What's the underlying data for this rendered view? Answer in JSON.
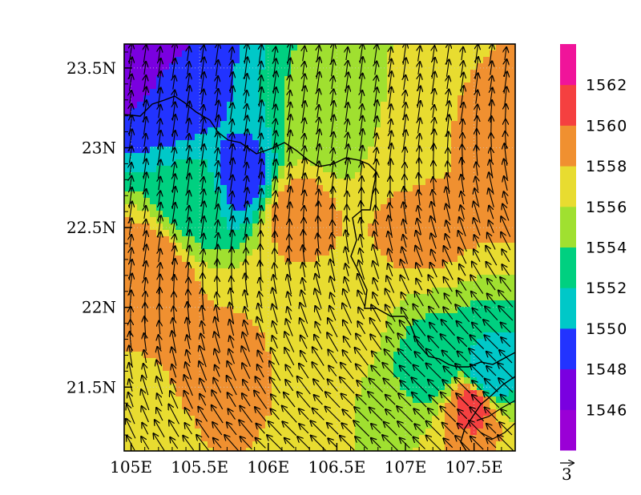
{
  "map": {
    "x_ticks": [
      "105E",
      "105.5E",
      "106E",
      "106.5E",
      "107E",
      "107.5E"
    ],
    "x_tick_values": [
      105,
      105.5,
      106,
      106.5,
      107,
      107.5
    ],
    "y_ticks": [
      "21.5N",
      "22N",
      "22.5N",
      "23N",
      "23.5N"
    ],
    "y_tick_values": [
      21.5,
      22,
      22.5,
      23,
      23.5
    ],
    "lon_range": [
      104.95,
      107.8
    ],
    "lat_range": [
      21.1,
      23.65
    ],
    "wind_reference": {
      "label": "3",
      "magnitude": 3
    }
  },
  "colorbar": {
    "labels": [
      "1546",
      "1548",
      "1550",
      "1552",
      "1554",
      "1556",
      "1558",
      "1560",
      "1562"
    ],
    "levels": [
      1546,
      1548,
      1550,
      1552,
      1554,
      1556,
      1558,
      1560,
      1562
    ],
    "colors": [
      "#9a00d6",
      "#7a00e0",
      "#2233ff",
      "#00c8c8",
      "#00d080",
      "#a0e030",
      "#e8dc30",
      "#f09030",
      "#f54040",
      "#f0149a"
    ]
  },
  "chart_data": {
    "type": "heatmap",
    "title": "",
    "xlabel": "",
    "ylabel": "",
    "xlim": [
      104.95,
      107.8
    ],
    "ylim": [
      21.1,
      23.65
    ],
    "colorbar_levels": [
      1546,
      1548,
      1550,
      1552,
      1554,
      1556,
      1558,
      1560,
      1562
    ],
    "field_samples": [
      {
        "lon": 105.05,
        "lat": 23.55,
        "value": 1546
      },
      {
        "lon": 105.3,
        "lat": 23.3,
        "value": 1549
      },
      {
        "lon": 105.8,
        "lat": 22.8,
        "value": 1549
      },
      {
        "lon": 105.5,
        "lat": 22.7,
        "value": 1553
      },
      {
        "lon": 106.2,
        "lat": 22.6,
        "value": 1559
      },
      {
        "lon": 106.5,
        "lat": 23.1,
        "value": 1555
      },
      {
        "lon": 107.0,
        "lat": 22.9,
        "value": 1557
      },
      {
        "lon": 107.1,
        "lat": 22.6,
        "value": 1559
      },
      {
        "lon": 107.7,
        "lat": 22.9,
        "value": 1559
      },
      {
        "lon": 105.1,
        "lat": 22.2,
        "value": 1560
      },
      {
        "lon": 105.6,
        "lat": 21.6,
        "value": 1559
      },
      {
        "lon": 106.0,
        "lat": 21.9,
        "value": 1558
      },
      {
        "lon": 106.5,
        "lat": 21.9,
        "value": 1557
      },
      {
        "lon": 107.2,
        "lat": 21.6,
        "value": 1553
      },
      {
        "lon": 107.6,
        "lat": 21.55,
        "value": 1550
      },
      {
        "lon": 107.5,
        "lat": 21.4,
        "value": 1561
      },
      {
        "lon": 106.7,
        "lat": 21.3,
        "value": 1556
      },
      {
        "lon": 105.1,
        "lat": 21.3,
        "value": 1557
      }
    ],
    "wind": {
      "description_free": true,
      "north_direction_deg": 8,
      "south_direction_deg": 315,
      "typical_speed": 3
    }
  }
}
